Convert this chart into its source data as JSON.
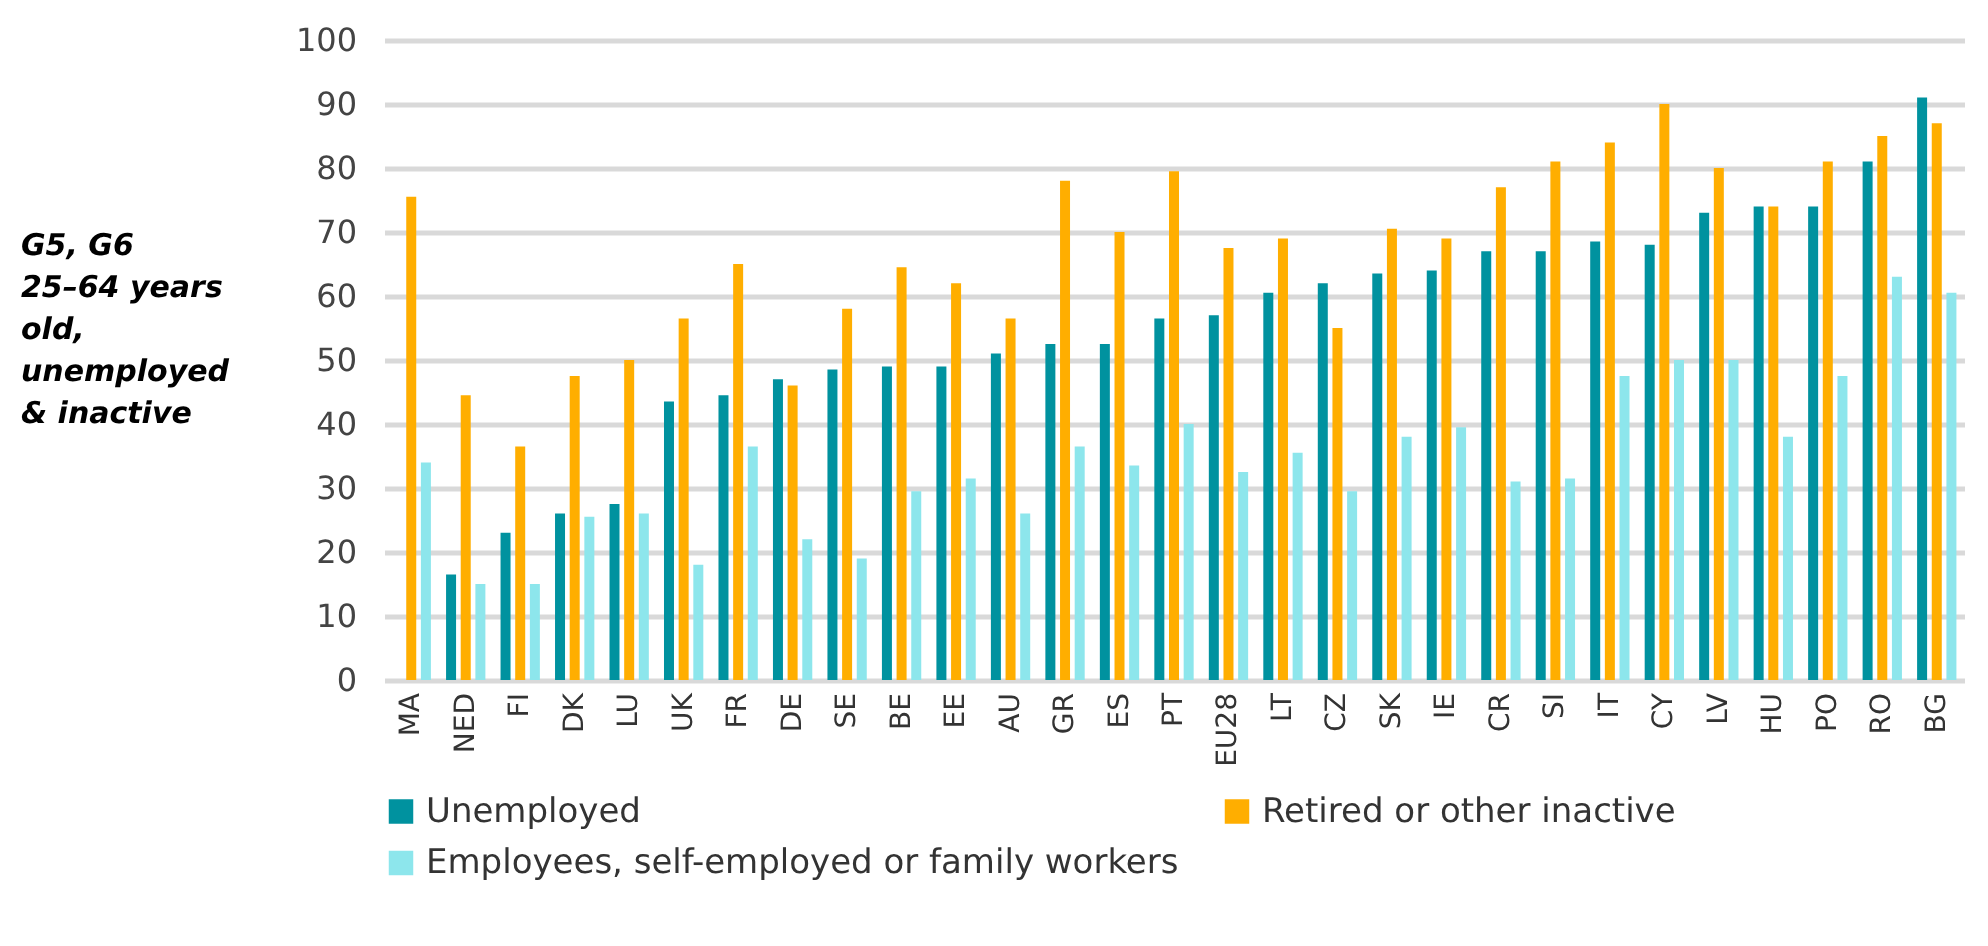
{
  "chart_data": {
    "type": "bar",
    "ylabel": "G5, G6\n25–64 years\nold,\nunemployed\n& inactive",
    "categories": [
      "MA",
      "NED",
      "FI",
      "DK",
      "LU",
      "UK",
      "FR",
      "DE",
      "SE",
      "BE",
      "EE",
      "AU",
      "GR",
      "ES",
      "PT",
      "EU28",
      "LT",
      "CZ",
      "SK",
      "IE",
      "CR",
      "SI",
      "IT",
      "CY",
      "LV",
      "HU",
      "PO",
      "RO",
      "BG"
    ],
    "series": [
      {
        "name": "Unemployed",
        "color": "#00929f",
        "values": [
          null,
          16.5,
          23,
          26,
          27.5,
          43.5,
          44.5,
          47,
          48.5,
          49,
          49,
          51,
          52.5,
          52.5,
          56.5,
          57,
          60.5,
          62,
          63.5,
          64,
          67,
          67,
          68.5,
          68,
          73,
          74,
          74,
          81,
          91
        ]
      },
      {
        "name": "Retired or other inactive",
        "color": "#ffae00",
        "values": [
          75.5,
          44.5,
          36.5,
          47.5,
          50,
          56.5,
          65,
          46,
          58,
          64.5,
          62,
          56.5,
          78,
          70,
          79.5,
          67.5,
          69,
          55,
          70.5,
          69,
          77,
          81,
          84,
          90,
          80,
          74,
          81,
          85,
          87
        ]
      },
      {
        "name": "Employees, self-employed or family workers",
        "color": "#8de6ec",
        "values": [
          34,
          15,
          15,
          25.5,
          26,
          18,
          36.5,
          22,
          19,
          29.5,
          31.5,
          26,
          36.5,
          33.5,
          40,
          32.5,
          35.5,
          29.5,
          38,
          39.5,
          31,
          31.5,
          47.5,
          50,
          50,
          38,
          47.5,
          63,
          60.5
        ]
      }
    ],
    "ylim": [
      0,
      100
    ],
    "yticks": [
      0,
      10,
      20,
      30,
      40,
      50,
      60,
      70,
      80,
      90,
      100
    ],
    "grid": "y",
    "legend": "bottom"
  }
}
